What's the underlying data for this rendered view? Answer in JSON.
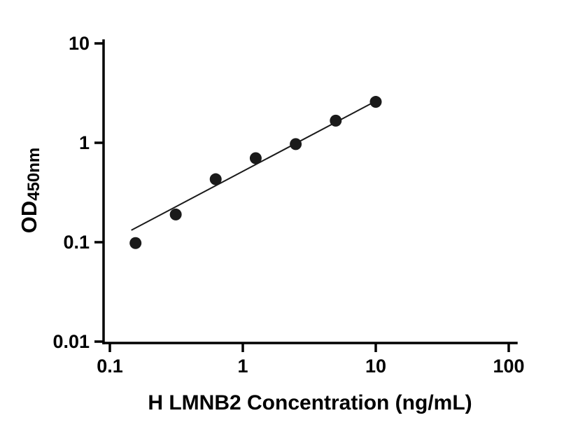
{
  "chart_data": {
    "type": "scatter",
    "title": "",
    "xlabel": "H LMNB2 Concentration (ng/mL)",
    "ylabel": {
      "prefix": "OD",
      "sub": "450nm"
    },
    "x_scale": "log",
    "y_scale": "log",
    "xlim": [
      0.1,
      100
    ],
    "ylim": [
      0.01,
      10
    ],
    "grid": false,
    "legend": false,
    "x_ticks": [
      {
        "value": 0.1,
        "label": "0.1"
      },
      {
        "value": 1,
        "label": "1"
      },
      {
        "value": 10,
        "label": "10"
      },
      {
        "value": 100,
        "label": "100"
      }
    ],
    "y_ticks": [
      {
        "value": 10,
        "label": "10"
      },
      {
        "value": 1,
        "label": "1"
      },
      {
        "value": 0.1,
        "label": "0.1"
      },
      {
        "value": 0.01,
        "label": "0.01"
      }
    ],
    "points": [
      {
        "x": 0.156,
        "y": 0.098
      },
      {
        "x": 0.313,
        "y": 0.19
      },
      {
        "x": 0.625,
        "y": 0.43
      },
      {
        "x": 1.25,
        "y": 0.7
      },
      {
        "x": 2.5,
        "y": 0.97
      },
      {
        "x": 5,
        "y": 1.67
      },
      {
        "x": 10,
        "y": 2.58
      }
    ],
    "fit_line": {
      "x1": 0.145,
      "y1": 0.132,
      "x2": 10.4,
      "y2": 2.7
    },
    "colors": {
      "point": "#1a1a1a",
      "line": "#1a1a1a",
      "axis": "#000000",
      "text": "#000000"
    }
  }
}
